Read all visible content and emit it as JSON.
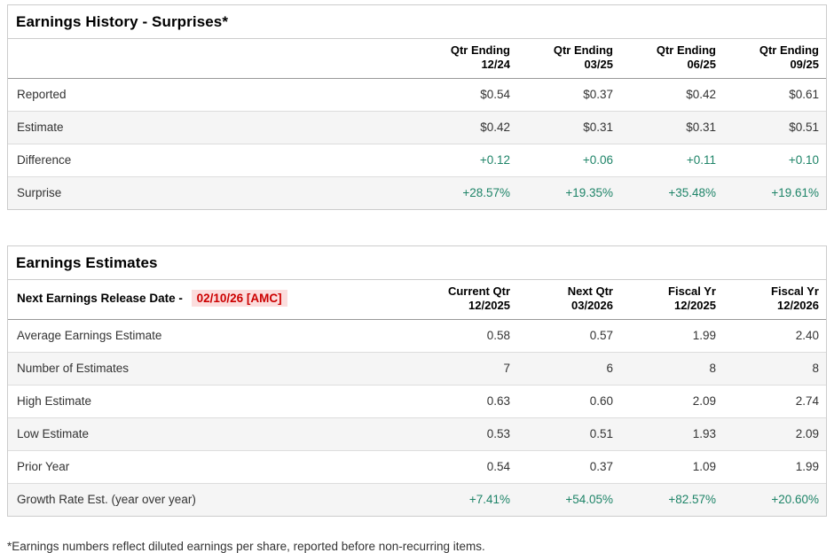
{
  "colors": {
    "positive": "#1e8468",
    "alert_text": "#cc0000",
    "alert_bg": "#fbdddd"
  },
  "history": {
    "title": "Earnings History - Surprises*",
    "columns": [
      {
        "line1": "Qtr Ending",
        "line2": "12/24"
      },
      {
        "line1": "Qtr Ending",
        "line2": "03/25"
      },
      {
        "line1": "Qtr Ending",
        "line2": "06/25"
      },
      {
        "line1": "Qtr Ending",
        "line2": "09/25"
      }
    ],
    "rows": [
      {
        "label": "Reported",
        "values": [
          "$0.54",
          "$0.37",
          "$0.42",
          "$0.61"
        ]
      },
      {
        "label": "Estimate",
        "values": [
          "$0.42",
          "$0.31",
          "$0.31",
          "$0.51"
        ]
      },
      {
        "label": "Difference",
        "values": [
          "+0.12",
          "+0.06",
          "+0.11",
          "+0.10"
        ]
      },
      {
        "label": "Surprise",
        "values": [
          "+28.57%",
          "+19.35%",
          "+35.48%",
          "+19.61%"
        ]
      }
    ]
  },
  "estimates": {
    "title": "Earnings Estimates",
    "release_label": "Next Earnings Release Date -",
    "release_date": "02/10/26 [AMC]",
    "columns": [
      {
        "line1": "Current Qtr",
        "line2": "12/2025"
      },
      {
        "line1": "Next Qtr",
        "line2": "03/2026"
      },
      {
        "line1": "Fiscal Yr",
        "line2": "12/2025"
      },
      {
        "line1": "Fiscal Yr",
        "line2": "12/2026"
      }
    ],
    "rows": [
      {
        "label": "Average Earnings Estimate",
        "values": [
          "0.58",
          "0.57",
          "1.99",
          "2.40"
        ]
      },
      {
        "label": "Number of Estimates",
        "values": [
          "7",
          "6",
          "8",
          "8"
        ]
      },
      {
        "label": "High Estimate",
        "values": [
          "0.63",
          "0.60",
          "2.09",
          "2.74"
        ]
      },
      {
        "label": "Low Estimate",
        "values": [
          "0.53",
          "0.51",
          "1.93",
          "2.09"
        ]
      },
      {
        "label": "Prior Year",
        "values": [
          "0.54",
          "0.37",
          "1.09",
          "1.99"
        ]
      },
      {
        "label": "Growth Rate Est. (year over year)",
        "values": [
          "+7.41%",
          "+54.05%",
          "+82.57%",
          "+20.60%"
        ]
      }
    ]
  },
  "footnote": "*Earnings numbers reflect diluted earnings per share, reported before non-recurring items."
}
